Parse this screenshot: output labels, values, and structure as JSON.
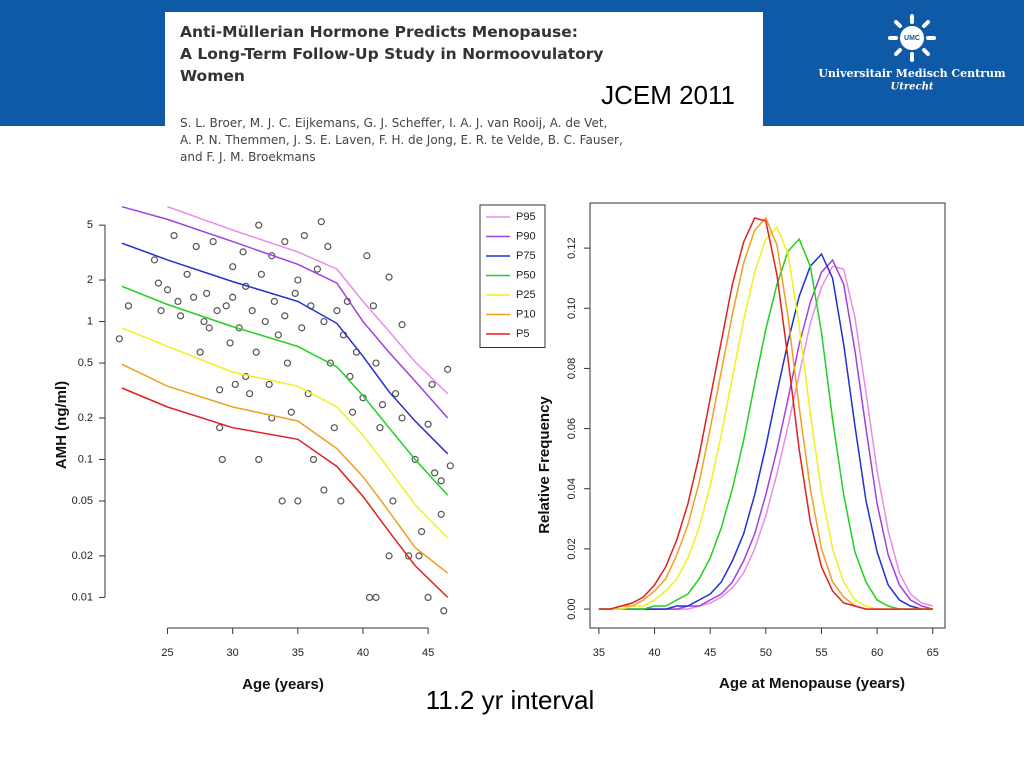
{
  "header": {
    "title": [
      "Anti-Müllerian Hormone Predicts Menopause:",
      "A Long-Term Follow-Up Study in Normoovulatory",
      "Women"
    ],
    "authors": [
      "S. L. Broer, M. J. C. Eijkemans, G. J. Scheffer, I. A. J. van Rooij, A. de Vet,",
      "A. P. N. Themmen, J. S. E. Laven, F. H. de Jong, E. R. te Velde, B. C. Fauser,",
      "and F. J. M. Broekmans"
    ],
    "journal": "JCEM 2011",
    "logo": {
      "mark": "UMC",
      "name": "Universitair Medisch Centrum",
      "city": "Utrecht"
    }
  },
  "caption": "11.2 yr interval",
  "chart_data": [
    {
      "type": "scatter",
      "xlabel": "Age (years)",
      "ylabel": "AMH (ng/ml)",
      "log_y": true,
      "marker_color": "#555555",
      "xlim": [
        20.2,
        47.6
      ],
      "ylim": [
        0.006,
        8
      ],
      "xticks": [
        25,
        30,
        35,
        40,
        45
      ],
      "yticks": [
        0.01,
        0.02,
        0.05,
        0.1,
        0.2,
        0.5,
        1,
        2,
        5
      ],
      "x": [
        21.3,
        22,
        24,
        24.3,
        24.5,
        25,
        25.5,
        25.8,
        26,
        26.5,
        27,
        27.2,
        27.5,
        27.8,
        28,
        28.2,
        28.5,
        28.8,
        29,
        29,
        29.2,
        29.5,
        29.8,
        30,
        30,
        30.2,
        30.5,
        30.8,
        31,
        31,
        31.3,
        31.5,
        31.8,
        32,
        32,
        32.2,
        32.5,
        32.8,
        33,
        33,
        33.2,
        33.5,
        33.8,
        34,
        34,
        34.2,
        34.5,
        34.8,
        35,
        35,
        35.3,
        35.5,
        35.8,
        36,
        36.2,
        36.5,
        36.8,
        37,
        37,
        37.3,
        37.5,
        37.8,
        38,
        38.3,
        38.5,
        38.8,
        39,
        39.2,
        39.5,
        40,
        40.3,
        40.5,
        40.8,
        41,
        41,
        41.3,
        41.5,
        42,
        42,
        42.3,
        42.5,
        43,
        43,
        43.5,
        44,
        44.3,
        44.5,
        45,
        45,
        45.3,
        45.5,
        46,
        46,
        46.2,
        46.5,
        46.7
      ],
      "values": [
        0.75,
        1.3,
        2.8,
        1.9,
        1.2,
        1.7,
        4.2,
        1.4,
        1.1,
        2.2,
        1.5,
        3.5,
        0.6,
        1.0,
        1.6,
        0.9,
        3.8,
        1.2,
        0.32,
        0.17,
        0.1,
        1.3,
        0.7,
        2.5,
        1.5,
        0.35,
        0.9,
        3.2,
        1.8,
        0.4,
        0.3,
        1.2,
        0.6,
        5,
        0.1,
        2.2,
        1.0,
        0.35,
        3.0,
        0.2,
        1.4,
        0.8,
        0.05,
        3.8,
        1.1,
        0.5,
        0.22,
        1.6,
        0.05,
        2.0,
        0.9,
        4.2,
        0.3,
        1.3,
        0.1,
        2.4,
        5.3,
        0.06,
        1.0,
        3.5,
        0.5,
        0.17,
        1.2,
        0.05,
        0.8,
        1.4,
        0.4,
        0.22,
        0.6,
        0.28,
        3.0,
        0.01,
        1.3,
        0.01,
        0.5,
        0.17,
        0.25,
        0.02,
        2.1,
        0.05,
        0.3,
        0.95,
        0.2,
        0.02,
        0.1,
        0.02,
        0.03,
        0.01,
        0.18,
        0.35,
        0.08,
        0.07,
        0.04,
        0.008,
        0.45,
        0.09
      ],
      "curve_x": [
        21.5,
        25,
        30,
        35,
        38,
        40,
        42,
        44,
        46.5
      ],
      "series": [
        {
          "name": "P95",
          "color": "#e88ce8",
          "values": [
            null,
            6.8,
            4.6,
            3.2,
            2.4,
            1.4,
            0.85,
            0.51,
            0.3
          ]
        },
        {
          "name": "P90",
          "color": "#a040e0",
          "values": [
            6.8,
            5.5,
            3.8,
            2.6,
            1.9,
            1.0,
            0.6,
            0.37,
            0.2
          ]
        },
        {
          "name": "P75",
          "color": "#2030d0",
          "values": [
            3.7,
            2.8,
            1.95,
            1.4,
            0.97,
            0.56,
            0.31,
            0.19,
            0.11
          ]
        },
        {
          "name": "P50",
          "color": "#20d020",
          "values": [
            1.8,
            1.33,
            0.92,
            0.66,
            0.47,
            0.29,
            0.17,
            0.1,
            0.055
          ]
        },
        {
          "name": "P25",
          "color": "#f0f020",
          "values": [
            0.9,
            0.66,
            0.43,
            0.34,
            0.24,
            0.15,
            0.085,
            0.047,
            0.027
          ]
        },
        {
          "name": "P10",
          "color": "#f0a020",
          "values": [
            0.49,
            0.34,
            0.24,
            0.19,
            0.12,
            0.075,
            0.042,
            0.023,
            0.015
          ]
        },
        {
          "name": "P5",
          "color": "#e02020",
          "values": [
            0.33,
            0.24,
            0.17,
            0.14,
            0.089,
            0.054,
            0.03,
            0.017,
            0.01
          ]
        }
      ]
    },
    {
      "type": "line",
      "xlabel": "Age at Menopause (years)",
      "ylabel": "Relative Frequency",
      "xlim": [
        34.2,
        66.1
      ],
      "ylim": [
        -0.0063,
        0.135
      ],
      "xticks": [
        35,
        40,
        45,
        50,
        55,
        60,
        65
      ],
      "yticks": [
        {
          "value": 0,
          "label": "0.00"
        },
        0.02,
        0.04,
        0.06,
        0.08,
        {
          "value": 0.1,
          "label": "0.10"
        },
        0.12
      ],
      "x": [
        35,
        36,
        37,
        38,
        39,
        40,
        41,
        42,
        43,
        44,
        45,
        46,
        47,
        48,
        49,
        50,
        51,
        52,
        53,
        54,
        55,
        56,
        57,
        58,
        59,
        60,
        61,
        62,
        63,
        64,
        65
      ],
      "series": [
        {
          "color": "#e88ce8",
          "values": [
            0,
            0,
            0,
            0,
            0,
            0,
            0,
            0,
            0,
            0.001,
            0.002,
            0.004,
            0.007,
            0.012,
            0.02,
            0.031,
            0.045,
            0.061,
            0.078,
            0.095,
            0.107,
            0.114,
            0.113,
            0.097,
            0.072,
            0.046,
            0.026,
            0.012,
            0.005,
            0.002,
            0.001
          ]
        },
        {
          "color": "#a040e0",
          "values": [
            0,
            0,
            0,
            0,
            0,
            0,
            0,
            0,
            0.001,
            0.001,
            0.003,
            0.005,
            0.009,
            0.016,
            0.025,
            0.038,
            0.053,
            0.07,
            0.088,
            0.102,
            0.112,
            0.116,
            0.108,
            0.086,
            0.06,
            0.035,
            0.018,
            0.008,
            0.003,
            0.001,
            0
          ]
        },
        {
          "color": "#2030d0",
          "values": [
            0,
            0,
            0,
            0,
            0,
            0,
            0,
            0.001,
            0.001,
            0.003,
            0.005,
            0.009,
            0.016,
            0.025,
            0.038,
            0.054,
            0.072,
            0.089,
            0.104,
            0.114,
            0.118,
            0.11,
            0.088,
            0.061,
            0.036,
            0.019,
            0.008,
            0.003,
            0.001,
            0,
            0
          ]
        },
        {
          "color": "#20d020",
          "values": [
            0,
            0,
            0,
            0,
            0,
            0.001,
            0.001,
            0.003,
            0.005,
            0.01,
            0.017,
            0.027,
            0.04,
            0.056,
            0.075,
            0.093,
            0.108,
            0.119,
            0.123,
            0.114,
            0.092,
            0.063,
            0.038,
            0.019,
            0.009,
            0.003,
            0.001,
            0,
            0,
            0,
            0
          ]
        },
        {
          "color": "#f0f020",
          "values": [
            0,
            0,
            0,
            0.001,
            0.001,
            0.003,
            0.006,
            0.01,
            0.017,
            0.027,
            0.041,
            0.058,
            0.077,
            0.096,
            0.112,
            0.123,
            0.127,
            0.118,
            0.094,
            0.065,
            0.039,
            0.02,
            0.009,
            0.003,
            0.001,
            0,
            0,
            0,
            0,
            0,
            0
          ]
        },
        {
          "color": "#f0a020",
          "values": [
            0,
            0,
            0.001,
            0.001,
            0.003,
            0.006,
            0.01,
            0.018,
            0.028,
            0.042,
            0.06,
            0.079,
            0.098,
            0.115,
            0.126,
            0.13,
            0.121,
            0.097,
            0.067,
            0.04,
            0.02,
            0.009,
            0.004,
            0.001,
            0,
            0,
            0,
            0,
            0,
            0,
            0
          ]
        },
        {
          "color": "#e02020",
          "values": [
            0,
            0,
            0.001,
            0.002,
            0.004,
            0.008,
            0.014,
            0.023,
            0.035,
            0.051,
            0.07,
            0.089,
            0.108,
            0.122,
            0.13,
            0.129,
            0.111,
            0.083,
            0.053,
            0.029,
            0.014,
            0.006,
            0.002,
            0.001,
            0,
            0,
            0,
            0,
            0,
            0,
            0
          ]
        }
      ]
    }
  ]
}
